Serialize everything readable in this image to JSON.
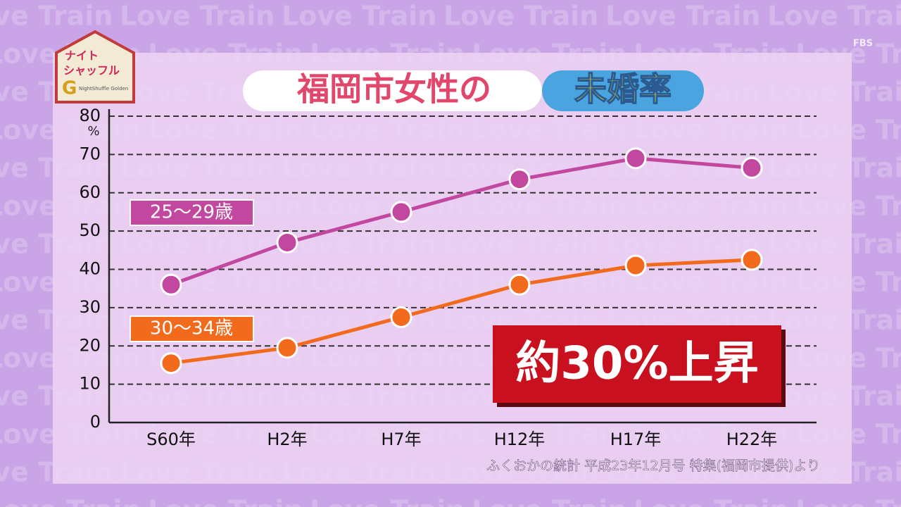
{
  "chart_data": {
    "type": "line",
    "title": "福岡市女性の",
    "title_highlight": "未婚率",
    "y_unit": "%",
    "categories": [
      "S60年",
      "H2年",
      "H7年",
      "H12年",
      "H17年",
      "H22年"
    ],
    "series": [
      {
        "name": "25〜29歳",
        "color": "#c2479f",
        "values": [
          36,
          47,
          55,
          63.5,
          69,
          66.5
        ]
      },
      {
        "name": "30〜34歳",
        "color": "#f26a1b",
        "values": [
          15.5,
          19.5,
          27.5,
          36,
          41,
          42.5
        ]
      }
    ],
    "ylim": [
      0,
      80
    ],
    "yticks": [
      0,
      10,
      20,
      30,
      40,
      50,
      60,
      70,
      80
    ],
    "grid": true,
    "annotation": "約30%上昇",
    "source": "ふくおかの統計 平成23年12月号 特集(福岡市提供)より"
  },
  "logo": {
    "line1": "ナイト",
    "line2": "シャッフル",
    "letter": "G",
    "subtitle": "NightShuffle Golden"
  },
  "channel": "FBS",
  "background_text": "Love Train"
}
